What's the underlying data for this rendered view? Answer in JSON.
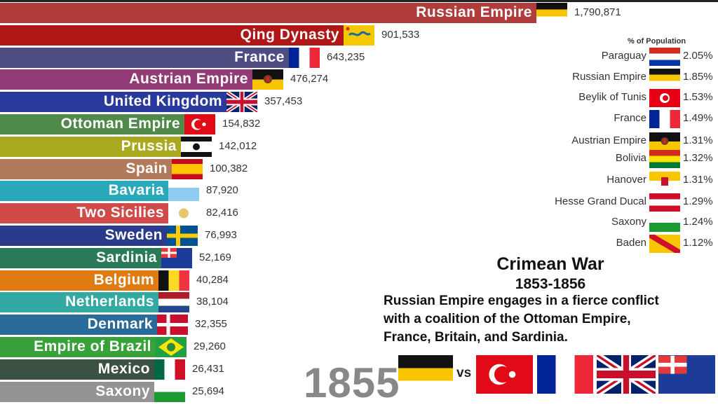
{
  "chart_data": {
    "type": "bar",
    "orientation": "horizontal",
    "categories": [
      "Russian Empire",
      "Qing Dynasty",
      "France",
      "Austrian Empire",
      "United Kingdom",
      "Ottoman Empire",
      "Prussia",
      "Spain",
      "Bavaria",
      "Two Sicilies",
      "Sweden",
      "Sardinia",
      "Belgium",
      "Netherlands",
      "Denmark",
      "Empire of Brazil",
      "Mexico",
      "Saxony"
    ],
    "values": [
      1790871,
      901533,
      643235,
      476274,
      357453,
      154832,
      142012,
      100382,
      87920,
      82416,
      76993,
      52169,
      40284,
      38104,
      32355,
      29260,
      26431,
      25694
    ],
    "value_labels": [
      "1,790,871",
      "901,533",
      "643,235",
      "476,274",
      "357,453",
      "154,832",
      "142,012",
      "100,382",
      "87,920",
      "82,416",
      "76,993",
      "52,169",
      "40,284",
      "38,104",
      "32,355",
      "29,260",
      "26,431",
      "25,694"
    ],
    "colors": [
      "#b03c3c",
      "#b01616",
      "#4d4d82",
      "#933b76",
      "#2a3a9c",
      "#4f8a4b",
      "#a9a81f",
      "#b17a5a",
      "#2aa9ba",
      "#d04a4a",
      "#293b8a",
      "#2a7a58",
      "#e07b12",
      "#32a9a2",
      "#2a6a99",
      "#39a13a",
      "#3b5141",
      "#939393"
    ],
    "flags": [
      "russia-imperial",
      "qing",
      "france",
      "austria",
      "uk",
      "ottoman",
      "prussia",
      "spain",
      "bavaria",
      "two-sicilies",
      "sweden",
      "sardinia",
      "belgium",
      "netherlands",
      "denmark",
      "brazil",
      "mexico",
      "saxony"
    ],
    "year": "1855"
  },
  "population_panel": {
    "title": "% of Population",
    "items": [
      {
        "name": "Paraguay",
        "value": "2.05%",
        "flag": "paraguay"
      },
      {
        "name": "Russian Empire",
        "value": "1.85%",
        "flag": "russia-imperial"
      },
      {
        "name": "Beylik of Tunis",
        "value": "1.53%",
        "flag": "tunis"
      },
      {
        "name": "France",
        "value": "1.49%",
        "flag": "france"
      },
      {
        "name": "Austrian Empire",
        "value": "1.31%",
        "flag": "austria"
      },
      {
        "name": "Bolivia",
        "value": "1.32%",
        "flag": "bolivia"
      },
      {
        "name": "Hanover",
        "value": "1.31%",
        "flag": "hanover"
      },
      {
        "name": "Hesse Grand Ducal",
        "value": "1.29%",
        "flag": "hesse"
      },
      {
        "name": "Saxony",
        "value": "1.24%",
        "flag": "saxony"
      },
      {
        "name": "Baden",
        "value": "1.12%",
        "flag": "baden"
      }
    ]
  },
  "event": {
    "title": "Crimean War",
    "years": "1853-1856",
    "description_lines": [
      "Russian Empire engages in a fierce conflict",
      "with a coalition of the Ottoman Empire,",
      "France, Britain, and Sardinia."
    ],
    "vs": "vs",
    "side_a": [
      "russia-imperial"
    ],
    "side_b": [
      "ottoman",
      "france",
      "uk",
      "sardinia"
    ]
  }
}
